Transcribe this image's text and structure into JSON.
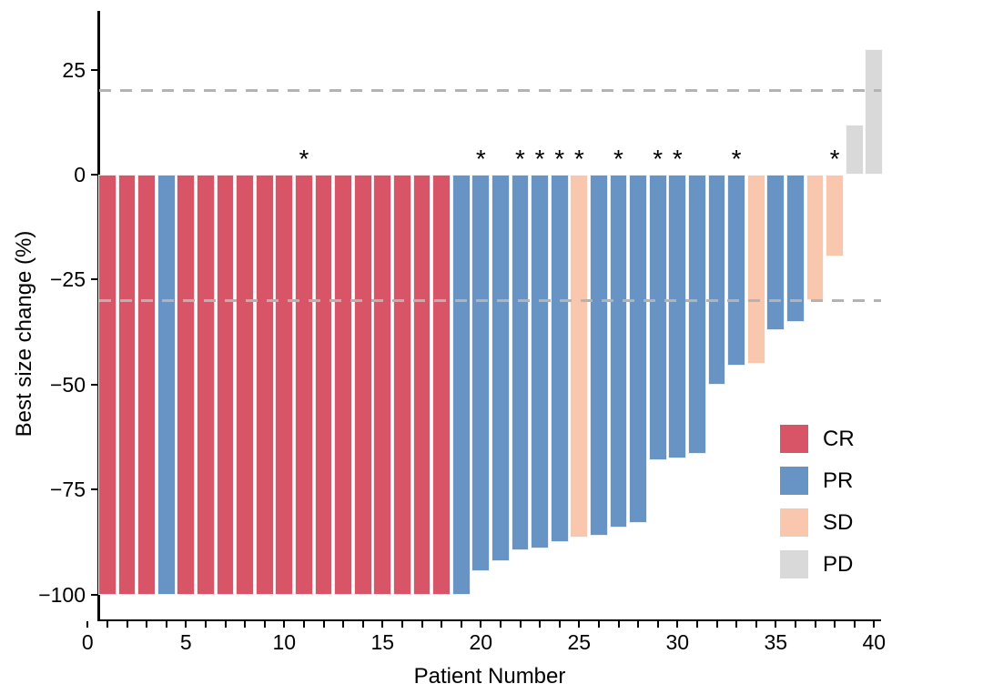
{
  "chart_data": {
    "type": "bar",
    "subtype": "waterfall",
    "title": "",
    "xlabel": "Patient Number",
    "ylabel": "Best size change (%)",
    "xlim": [
      0,
      40.5
    ],
    "ylim": [
      -106,
      39
    ],
    "grid": "off",
    "legend_position": "right-middle",
    "x_tick_values": [
      0,
      5,
      10,
      15,
      20,
      25,
      30,
      35,
      40
    ],
    "x_tick_labels": [
      "0",
      "5",
      "10",
      "15",
      "20",
      "25",
      "30",
      "35",
      "40"
    ],
    "x_minor_tick_step": 1,
    "y_tick_values": [
      25,
      0,
      -25,
      -50,
      -75,
      -100
    ],
    "y_tick_labels": [
      "25",
      "0",
      "−25",
      "−50",
      "−75",
      "−100"
    ],
    "categories": [
      1,
      2,
      3,
      4,
      5,
      6,
      7,
      8,
      9,
      10,
      11,
      12,
      13,
      14,
      15,
      16,
      17,
      18,
      19,
      20,
      21,
      22,
      23,
      24,
      25,
      26,
      27,
      28,
      29,
      30,
      31,
      32,
      33,
      34,
      35,
      36,
      37,
      38,
      39,
      40
    ],
    "series": [
      {
        "name": "Best size change (%)",
        "values": [
          -100,
          -100,
          -100,
          -100,
          -100,
          -100,
          -100,
          -100,
          -100,
          -100,
          -100,
          -100,
          -100,
          -100,
          -100,
          -100,
          -100,
          -100,
          -100,
          -94.5,
          -92,
          -89.5,
          -89,
          -87.5,
          -86.5,
          -86,
          -84,
          -83,
          -68,
          -67.5,
          -66.5,
          -50,
          -45.5,
          -45,
          -37,
          -35,
          -30,
          -19.5,
          12,
          30
        ]
      }
    ],
    "responses": [
      "CR",
      "CR",
      "CR",
      "PR",
      "CR",
      "CR",
      "CR",
      "CR",
      "CR",
      "CR",
      "CR",
      "CR",
      "CR",
      "CR",
      "CR",
      "CR",
      "CR",
      "CR",
      "PR",
      "PR",
      "PR",
      "PR",
      "PR",
      "PR",
      "SD",
      "PR",
      "PR",
      "PR",
      "PR",
      "PR",
      "PR",
      "PR",
      "PR",
      "SD",
      "PR",
      "PR",
      "SD",
      "SD",
      "PD",
      "PD"
    ],
    "starred_patients": [
      11,
      20,
      22,
      23,
      24,
      25,
      27,
      29,
      30,
      33,
      38
    ],
    "star_symbol": "*",
    "reference_lines": [
      {
        "value": 20,
        "style": "dashed",
        "color": "#b3b3b3"
      },
      {
        "value": -30,
        "style": "dashed",
        "color": "#b3b3b3"
      }
    ],
    "colors": {
      "CR": "#d75566",
      "PR": "#6793c5",
      "SD": "#f8c7ad",
      "PD": "#d9d9d9"
    },
    "legend": [
      {
        "label": "CR",
        "color": "#d75566"
      },
      {
        "label": "PR",
        "color": "#6793c5"
      },
      {
        "label": "SD",
        "color": "#f8c7ad"
      },
      {
        "label": "PD",
        "color": "#d9d9d9"
      }
    ],
    "axis_color": "#000000",
    "text_color": "#000000"
  }
}
